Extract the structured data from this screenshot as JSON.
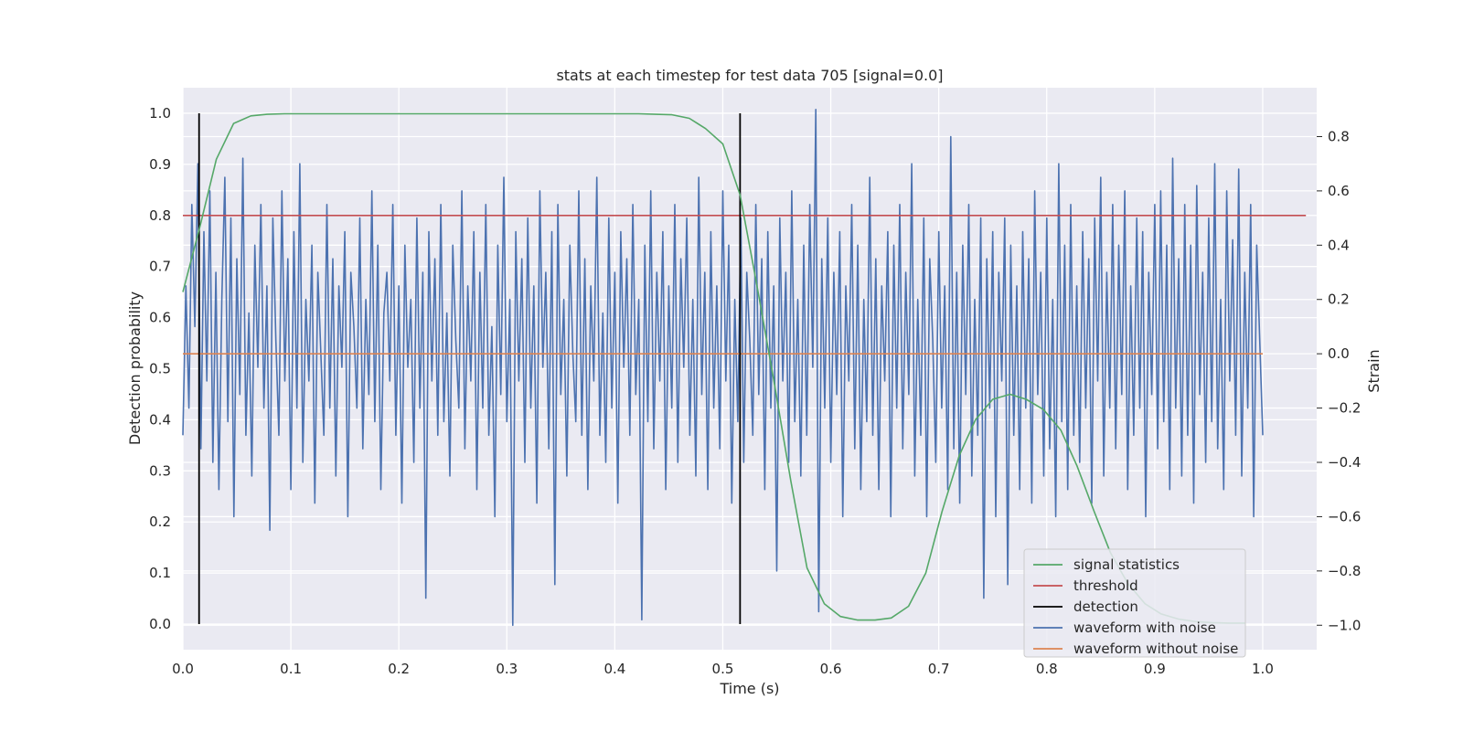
{
  "chart_data": {
    "type": "line",
    "title": "stats at each timestep for test data 705 [signal=0.0]",
    "xlabel": "Time (s)",
    "ylabel": "Detection probability",
    "y2label": "Strain",
    "xlim": [
      0.0,
      1.05
    ],
    "ylim": [
      -0.05,
      1.05
    ],
    "y2lim": [
      -1.09,
      0.98
    ],
    "grid": true,
    "legend_position": "lower-right",
    "xticks": [
      "0.0",
      "0.1",
      "0.2",
      "0.3",
      "0.4",
      "0.5",
      "0.6",
      "0.7",
      "0.8",
      "0.9",
      "1.0"
    ],
    "yticks": [
      "0.0",
      "0.1",
      "0.2",
      "0.3",
      "0.4",
      "0.5",
      "0.6",
      "0.7",
      "0.8",
      "0.9",
      "1.0"
    ],
    "y2ticks": [
      "−1.0",
      "−0.8",
      "−0.6",
      "−0.4",
      "−0.2",
      "0.0",
      "0.2",
      "0.4",
      "0.6",
      "0.8"
    ],
    "series": [
      {
        "name": "signal statistics",
        "axis": "left",
        "color": "#55a868",
        "x": [
          0.0,
          0.016,
          0.031,
          0.047,
          0.063,
          0.078,
          0.094,
          0.109,
          0.125,
          0.141,
          0.156,
          0.172,
          0.188,
          0.203,
          0.219,
          0.234,
          0.25,
          0.266,
          0.281,
          0.297,
          0.313,
          0.328,
          0.344,
          0.359,
          0.375,
          0.391,
          0.406,
          0.422,
          0.438,
          0.453,
          0.469,
          0.484,
          0.5,
          0.516,
          0.531,
          0.547,
          0.563,
          0.578,
          0.594,
          0.609,
          0.625,
          0.641,
          0.656,
          0.672,
          0.688,
          0.703,
          0.719,
          0.734,
          0.75,
          0.766,
          0.781,
          0.797,
          0.813,
          0.828,
          0.844,
          0.859,
          0.875,
          0.891,
          0.906,
          0.922,
          0.938,
          0.953,
          0.969,
          0.984
        ],
        "y": [
          0.65,
          0.78,
          0.91,
          0.98,
          0.995,
          0.998,
          0.999,
          0.999,
          0.999,
          0.999,
          0.999,
          0.999,
          0.999,
          0.999,
          0.999,
          0.999,
          0.999,
          0.999,
          0.999,
          0.999,
          0.999,
          0.999,
          0.999,
          0.999,
          0.999,
          0.999,
          0.999,
          0.999,
          0.998,
          0.997,
          0.99,
          0.97,
          0.94,
          0.84,
          0.67,
          0.48,
          0.28,
          0.11,
          0.04,
          0.015,
          0.008,
          0.008,
          0.012,
          0.035,
          0.1,
          0.22,
          0.33,
          0.4,
          0.44,
          0.45,
          0.44,
          0.42,
          0.38,
          0.31,
          0.22,
          0.14,
          0.08,
          0.04,
          0.02,
          0.01,
          0.005,
          0.003,
          0.002,
          0.002
        ]
      },
      {
        "name": "threshold",
        "axis": "left",
        "color": "#c44e52",
        "x": [
          0.0,
          1.04
        ],
        "y": [
          0.8,
          0.8
        ]
      },
      {
        "name": "detection",
        "axis": "left",
        "color": "#000000",
        "segments": [
          {
            "x": 0.015,
            "y0": 0.0,
            "y1": 1.0
          },
          {
            "x": 0.516,
            "y0": 0.0,
            "y1": 1.0
          }
        ]
      },
      {
        "name": "waveform with noise",
        "axis": "right",
        "color": "#4c72b0",
        "x_range": [
          0.0,
          1.0
        ],
        "y": [
          -0.3,
          0.25,
          -0.2,
          0.55,
          0.1,
          0.7,
          -0.35,
          0.45,
          -0.1,
          0.6,
          -0.4,
          0.3,
          -0.5,
          0.2,
          0.65,
          -0.25,
          0.5,
          -0.6,
          0.35,
          -0.15,
          0.72,
          -0.3,
          0.15,
          -0.45,
          0.4,
          -0.05,
          0.55,
          -0.2,
          0.25,
          -0.65,
          0.5,
          0.05,
          -0.3,
          0.6,
          -0.1,
          0.35,
          -0.5,
          0.45,
          -0.2,
          0.7,
          -0.4,
          0.2,
          -0.1,
          0.4,
          -0.55,
          0.3,
          0.0,
          -0.3,
          0.55,
          -0.2,
          0.35,
          -0.45,
          0.25,
          -0.05,
          0.45,
          -0.6,
          0.3,
          0.1,
          -0.2,
          0.5,
          -0.35,
          0.2,
          -0.15,
          0.6,
          -0.25,
          0.4,
          -0.5,
          0.15,
          0.3,
          -0.1,
          0.55,
          -0.3,
          0.25,
          -0.55,
          0.4,
          -0.05,
          0.2,
          -0.4,
          0.5,
          -0.2,
          0.3,
          -0.9,
          0.45,
          -0.1,
          0.35,
          -0.3,
          0.55,
          -0.25,
          0.15,
          -0.45,
          0.4,
          0.05,
          -0.2,
          0.6,
          -0.35,
          0.25,
          -0.1,
          0.45,
          -0.5,
          0.3,
          -0.2,
          0.55,
          -0.3,
          0.1,
          -0.6,
          0.4,
          -0.15,
          0.65,
          -0.25,
          0.2,
          -1.0,
          0.45,
          -0.1,
          0.35,
          -0.4,
          0.5,
          -0.2,
          0.25,
          -0.55,
          0.6,
          -0.05,
          0.3,
          -0.35,
          0.45,
          -0.85,
          0.55,
          -0.15,
          0.2,
          -0.45,
          0.4,
          0.0,
          -0.25,
          0.6,
          -0.3,
          0.35,
          -0.5,
          0.25,
          -0.1,
          0.65,
          -0.3,
          0.15,
          -0.4,
          0.5,
          -0.2,
          0.3,
          -0.55,
          0.45,
          -0.05,
          0.35,
          -0.3,
          0.55,
          -0.15,
          0.2,
          -0.98,
          0.4,
          -0.25,
          0.6,
          -0.35,
          0.3,
          -0.1,
          0.45,
          -0.5,
          0.25,
          -0.2,
          0.55,
          -0.4,
          0.35,
          -0.05,
          0.5,
          -0.3,
          0.2,
          -0.45,
          0.65,
          -0.15,
          0.3,
          -0.5,
          0.45,
          -0.2,
          0.25,
          -0.35,
          0.6,
          -0.1,
          0.4,
          -0.55,
          0.2,
          -0.25,
          0.5,
          -0.4,
          0.3,
          0.05,
          -0.3,
          0.55,
          -0.15,
          0.35,
          -0.5,
          0.45,
          -0.2,
          0.25,
          -0.8,
          0.5,
          -0.1,
          0.3,
          -0.4,
          0.6,
          -0.25,
          0.2,
          -0.45,
          0.4,
          -0.3,
          0.55,
          -0.05,
          0.9,
          -0.95,
          0.35,
          -0.2,
          0.5,
          -0.4,
          0.3,
          -0.15,
          0.45,
          -0.6,
          0.25,
          -0.1,
          0.55,
          -0.35,
          0.4,
          -0.5,
          0.2,
          -0.25,
          0.65,
          -0.3,
          0.35,
          -0.5,
          0.25,
          -0.1,
          0.45,
          -0.6,
          0.4,
          -0.2,
          0.55,
          -0.35,
          0.3,
          -0.15,
          0.7,
          -0.45,
          0.2,
          -0.3,
          0.5,
          -0.6,
          0.35,
          0.05,
          -0.4,
          0.45,
          -0.2,
          0.25,
          -0.5,
          0.8,
          -0.35,
          0.3,
          -0.55,
          0.4,
          -0.15,
          0.55,
          -0.45,
          0.2,
          -0.3,
          0.5,
          -0.9,
          0.35,
          -0.2,
          0.45,
          -0.6,
          0.3,
          -0.1,
          0.5,
          -0.85,
          0.4,
          -0.3,
          0.25,
          -0.5,
          0.45,
          -0.2,
          0.35,
          -0.55,
          0.6,
          -0.15,
          0.3,
          -0.45,
          0.5,
          -0.35,
          0.2,
          -0.6,
          0.7,
          -0.25,
          0.4,
          -0.5,
          0.55,
          -0.3,
          0.25,
          -0.4,
          0.45,
          -0.2,
          0.35,
          -0.55,
          0.5,
          -0.1,
          0.65,
          -0.45,
          0.3,
          -0.2,
          0.55,
          -0.35,
          0.4,
          -0.15,
          0.6,
          -0.5,
          0.25,
          -0.3,
          0.5,
          -0.2,
          0.45,
          -0.6,
          0.3,
          -0.15,
          0.55,
          -0.35,
          0.6,
          -0.25,
          0.4,
          -0.5,
          0.72,
          -0.2,
          0.35,
          -0.45,
          0.55,
          -0.3,
          0.4,
          -0.55,
          0.62,
          -0.15,
          0.3,
          -0.4,
          0.5,
          -0.25,
          0.7,
          -0.35,
          0.2,
          -0.5,
          0.6,
          -0.1,
          0.42,
          -0.3,
          0.68,
          -0.45,
          0.3,
          -0.2,
          0.55,
          -0.6,
          0.4,
          0.05,
          -0.3
        ]
      },
      {
        "name": "waveform without noise",
        "axis": "right",
        "color": "#dd8452",
        "x": [
          0.0,
          1.0
        ],
        "y": [
          0.0,
          0.0
        ]
      }
    ]
  }
}
